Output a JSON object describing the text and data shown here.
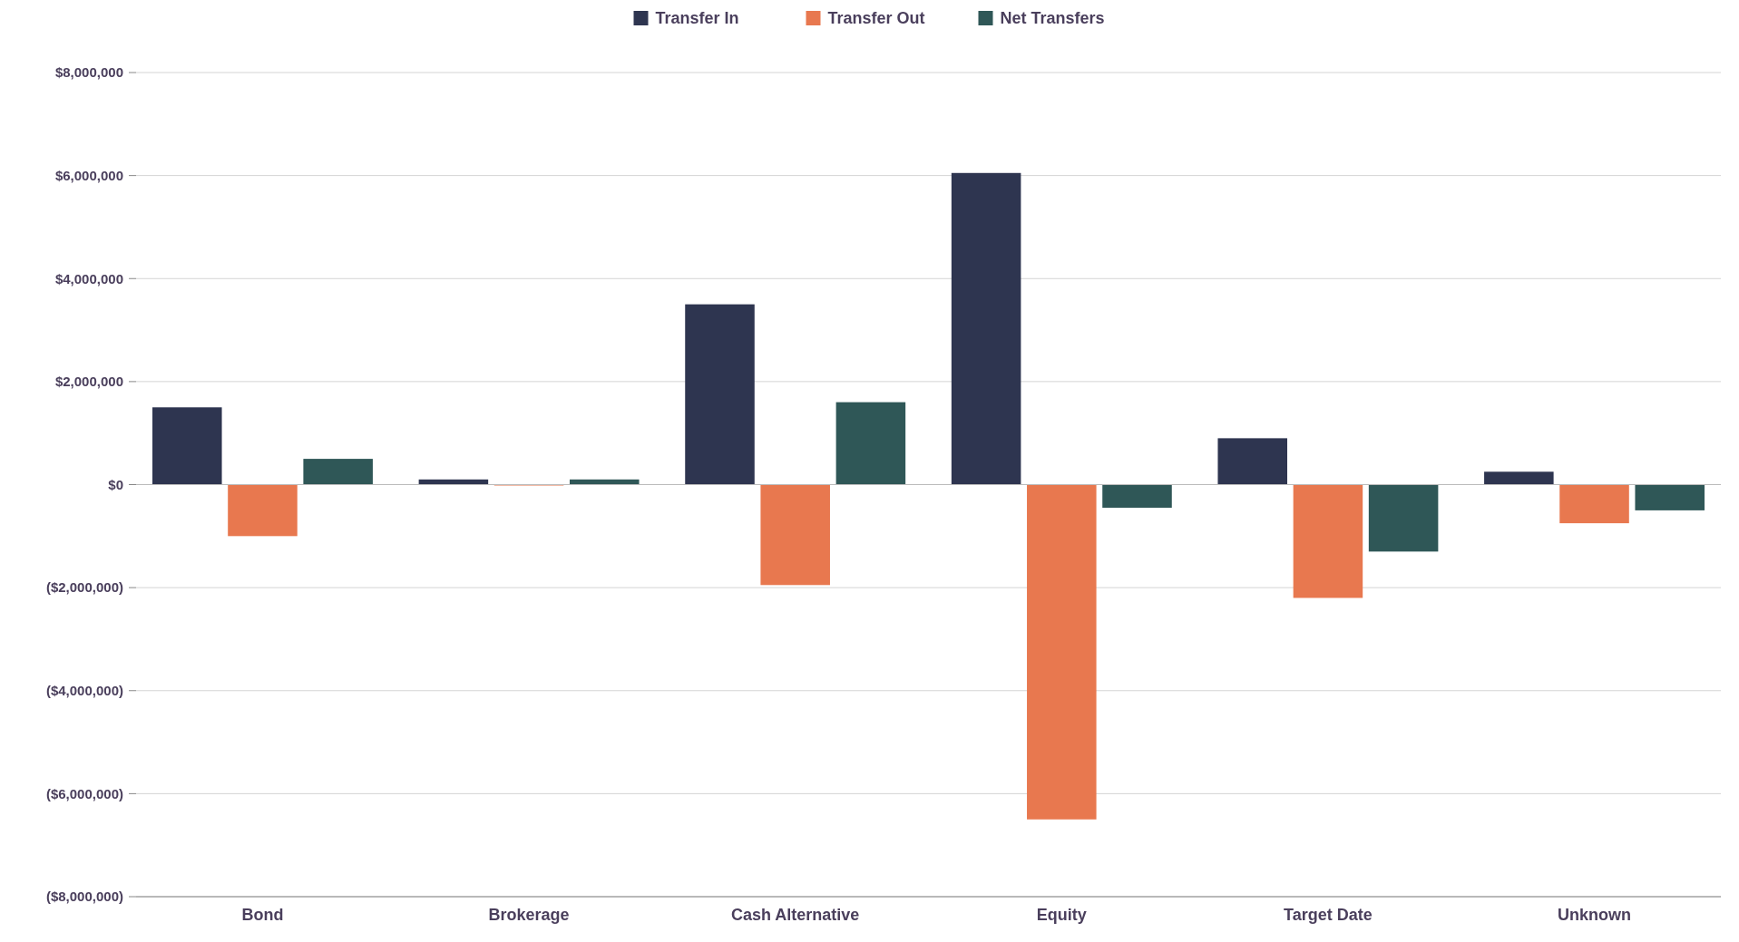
{
  "chart_data": {
    "type": "bar",
    "categories": [
      "Bond",
      "Brokerage",
      "Cash Alternative",
      "Equity",
      "Target Date",
      "Unknown"
    ],
    "series": [
      {
        "name": "Transfer In",
        "color": "#2e3550",
        "values": [
          1500000,
          100000,
          3500000,
          6050000,
          900000,
          250000
        ]
      },
      {
        "name": "Transfer Out",
        "color": "#e8784f",
        "values": [
          -1000000,
          0,
          -1950000,
          -6500000,
          -2200000,
          -750000
        ]
      },
      {
        "name": "Net Transfers",
        "color": "#2f5757",
        "values": [
          500000,
          100000,
          1600000,
          -450000,
          -1300000,
          -500000
        ]
      }
    ],
    "ylim": [
      -8000000,
      8000000
    ],
    "yticks": [
      {
        "value": -8000000,
        "label": "($8,000,000)"
      },
      {
        "value": -6000000,
        "label": "($6,000,000)"
      },
      {
        "value": -4000000,
        "label": "($4,000,000)"
      },
      {
        "value": -2000000,
        "label": "($2,000,000)"
      },
      {
        "value": 0,
        "label": "$0"
      },
      {
        "value": 2000000,
        "label": "$2,000,000"
      },
      {
        "value": 4000000,
        "label": "$4,000,000"
      },
      {
        "value": 6000000,
        "label": "$6,000,000"
      },
      {
        "value": 8000000,
        "label": "$8,000,000"
      }
    ],
    "grid": true,
    "legend": "top"
  }
}
